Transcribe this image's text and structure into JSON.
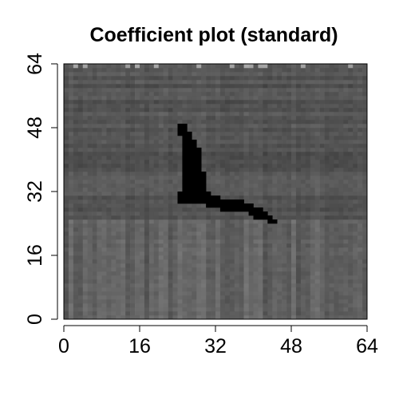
{
  "chart_data": {
    "type": "heatmap",
    "title": "Coefficient plot (standard)",
    "xlabel": "",
    "ylabel": "",
    "xlim": [
      0,
      64
    ],
    "ylim": [
      0,
      64
    ],
    "x_ticks": [
      "0",
      "16",
      "32",
      "48",
      "64"
    ],
    "y_ticks": [
      "0",
      "16",
      "32",
      "48",
      "64"
    ],
    "grid": false,
    "legend": "none",
    "color_scale": "grayscale",
    "background_value": 0.33,
    "lower_band_value": 0.38,
    "lower_band_y_range": [
      0,
      25
    ],
    "highlight_value": 0.0,
    "highlight_cells": [
      {
        "x": 24,
        "y": 48,
        "w": 2,
        "h": 1
      },
      {
        "x": 24,
        "y": 47,
        "w": 2,
        "h": 1
      },
      {
        "x": 24,
        "y": 46,
        "w": 3,
        "h": 1
      },
      {
        "x": 25,
        "y": 45,
        "w": 2,
        "h": 1
      },
      {
        "x": 25,
        "y": 44,
        "w": 3,
        "h": 1
      },
      {
        "x": 25,
        "y": 43,
        "w": 3,
        "h": 1
      },
      {
        "x": 25,
        "y": 42,
        "w": 4,
        "h": 1
      },
      {
        "x": 25,
        "y": 41,
        "w": 4,
        "h": 1
      },
      {
        "x": 25,
        "y": 40,
        "w": 4,
        "h": 1
      },
      {
        "x": 25,
        "y": 39,
        "w": 4,
        "h": 1
      },
      {
        "x": 25,
        "y": 38,
        "w": 4,
        "h": 1
      },
      {
        "x": 25,
        "y": 37,
        "w": 4,
        "h": 1
      },
      {
        "x": 25,
        "y": 36,
        "w": 5,
        "h": 1
      },
      {
        "x": 25,
        "y": 35,
        "w": 5,
        "h": 1
      },
      {
        "x": 25,
        "y": 34,
        "w": 5,
        "h": 1
      },
      {
        "x": 25,
        "y": 33,
        "w": 5,
        "h": 1
      },
      {
        "x": 25,
        "y": 32,
        "w": 5,
        "h": 1
      },
      {
        "x": 24,
        "y": 31,
        "w": 7,
        "h": 1
      },
      {
        "x": 24,
        "y": 30,
        "w": 9,
        "h": 1
      },
      {
        "x": 24,
        "y": 29,
        "w": 14,
        "h": 1
      },
      {
        "x": 30,
        "y": 28,
        "w": 10,
        "h": 1
      },
      {
        "x": 33,
        "y": 27,
        "w": 9,
        "h": 1
      },
      {
        "x": 39,
        "y": 26,
        "w": 4,
        "h": 1
      },
      {
        "x": 40,
        "y": 25,
        "w": 4,
        "h": 1
      },
      {
        "x": 43,
        "y": 24,
        "w": 2,
        "h": 1
      }
    ]
  }
}
